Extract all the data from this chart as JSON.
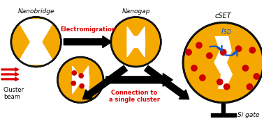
{
  "bg_color": "#ffffff",
  "gold_color": "#F5A800",
  "circle_edge": "#111111",
  "red_arrow_color": "#DD0000",
  "red_text_color": "#DD0000",
  "blue_arrow_color": "#1155CC",
  "dot_color": "#CC0000",
  "title": "Nanobridge",
  "title2": "Nanogap",
  "title3": "cSET",
  "label_cluster": "Cluster\nbeam",
  "label_electro": "Electromigration",
  "label_connect": "Connection to\na single cluster",
  "label_isd": "$I_{SD}$",
  "label_sigate": "Si gate",
  "fig_width": 3.78,
  "fig_height": 1.87
}
